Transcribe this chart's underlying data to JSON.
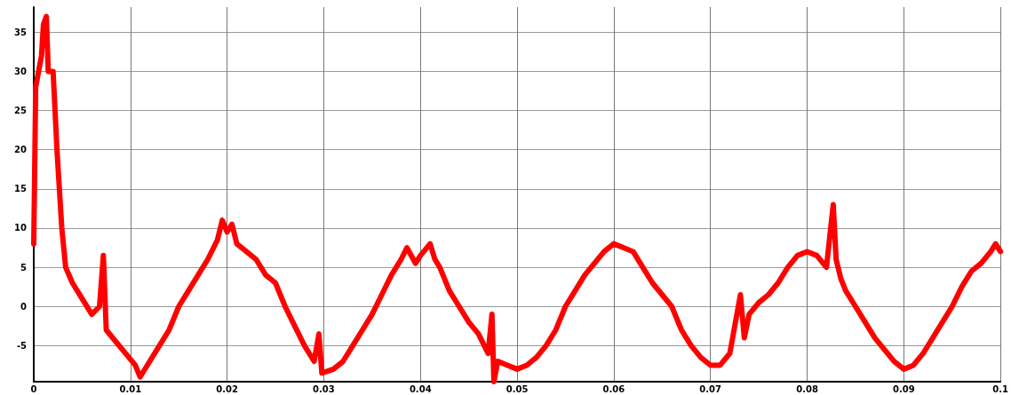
{
  "chart_data": {
    "type": "line",
    "xlim": [
      0,
      0.1
    ],
    "xticks": [
      0,
      0.01,
      0.02,
      0.03,
      0.04,
      0.05,
      0.06,
      0.07,
      0.08,
      0.09,
      0.1
    ],
    "ylim": [
      -9.6,
      38.2
    ],
    "yticks": [
      -5,
      0,
      5,
      10,
      15,
      20,
      25,
      30,
      35
    ],
    "grid": true,
    "marker": "none",
    "line_style": "solid",
    "series": [
      {
        "color": "#ff0000",
        "x": [
          0,
          0.0002,
          0.0005,
          0.0008,
          0.001,
          0.0013,
          0.0015,
          0.002,
          0.0024,
          0.0029,
          0.0033,
          0.004,
          0.005,
          0.006,
          0.0068,
          0.0072,
          0.0075,
          0.0085,
          0.0095,
          0.0105,
          0.011,
          0.012,
          0.013,
          0.014,
          0.015,
          0.016,
          0.017,
          0.018,
          0.019,
          0.0195,
          0.02,
          0.0205,
          0.021,
          0.022,
          0.023,
          0.024,
          0.025,
          0.026,
          0.027,
          0.028,
          0.029,
          0.0295,
          0.0298,
          0.031,
          0.032,
          0.033,
          0.034,
          0.035,
          0.036,
          0.037,
          0.038,
          0.0386,
          0.0395,
          0.04,
          0.041,
          0.0415,
          0.042,
          0.043,
          0.044,
          0.045,
          0.046,
          0.047,
          0.0474,
          0.0476,
          0.048,
          0.049,
          0.05,
          0.051,
          0.052,
          0.053,
          0.054,
          0.055,
          0.056,
          0.057,
          0.058,
          0.059,
          0.06,
          0.061,
          0.062,
          0.063,
          0.064,
          0.065,
          0.066,
          0.067,
          0.068,
          0.069,
          0.07,
          0.071,
          0.072,
          0.0731,
          0.0735,
          0.074,
          0.075,
          0.076,
          0.077,
          0.078,
          0.079,
          0.08,
          0.081,
          0.082,
          0.0827,
          0.083,
          0.0835,
          0.084,
          0.085,
          0.086,
          0.087,
          0.088,
          0.089,
          0.09,
          0.091,
          0.092,
          0.093,
          0.094,
          0.095,
          0.096,
          0.097,
          0.098,
          0.099,
          0.0995,
          0.1
        ],
        "values": [
          8,
          28,
          30,
          32,
          36,
          37,
          30,
          30,
          20,
          10,
          5,
          3,
          1,
          -1,
          0,
          6.5,
          -3,
          -4.5,
          -6,
          -7.5,
          -9,
          -7,
          -5,
          -3,
          0,
          2,
          4,
          6,
          8.5,
          11,
          9.5,
          10.5,
          8,
          7,
          6,
          4,
          3,
          0,
          -2.5,
          -5,
          -7,
          -3.5,
          -8.5,
          -8,
          -7,
          -5,
          -3,
          -1,
          1.5,
          4,
          6,
          7.5,
          5.5,
          6.5,
          8,
          6,
          5,
          2,
          0,
          -2,
          -3.5,
          -6,
          -1,
          -9.6,
          -7,
          -7.5,
          -8,
          -7.5,
          -6.5,
          -5,
          -3,
          0,
          2,
          4,
          5.5,
          7,
          8,
          7.5,
          7,
          5,
          3,
          1.5,
          0,
          -3,
          -5,
          -6.5,
          -7.5,
          -7.5,
          -6,
          1.5,
          -4,
          -1,
          0.5,
          1.5,
          3,
          5,
          6.5,
          7,
          6.5,
          5,
          13,
          6,
          3.5,
          2,
          0,
          -2,
          -4,
          -5.5,
          -7,
          -8,
          -7.5,
          -6,
          -4,
          -2,
          0,
          2.5,
          4.5,
          5.5,
          7,
          8,
          7
        ]
      }
    ]
  }
}
